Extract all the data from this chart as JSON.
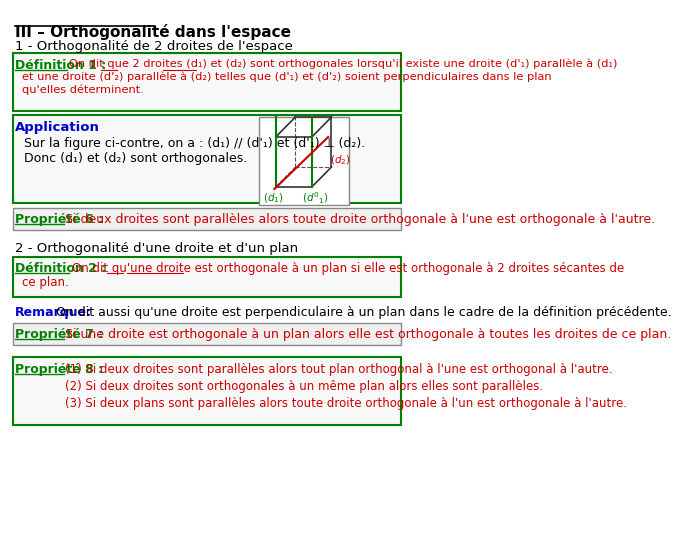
{
  "title": "III – Orthogonalité dans l'espace",
  "bg_color": "#ffffff",
  "section1_title": "1 - Orthogonalité de 2 droites de l'espace",
  "def1_label": "Définition 1 :",
  "def1_text_red": "On dit que 2 droites (d₁) et (d₂) sont orthogonales lorsqu'il existe une droite (d'₁) parallèle à (d₁)\net une droite (d'₂) parallèle à (d₂) telles que (d'₁) et (d'₂) soient perpendiculaires dans le plan\nqu'elles déterminent.",
  "app_label": "Application",
  "app_line1": "Sur la figure ci-contre, on a : (d₁) // (d'₁) et (d'₁) ⊥ (d₂).",
  "app_line2": "Donc (d₁) et (d₂) sont orthogonales.",
  "prop6_label": "Propriété 6 :",
  "prop6_text": "Si deux droites sont parallèles alors toute droite orthogonale à l'une est orthogonale à l'autre.",
  "section2_title": "2 - Orthogonalité d'une droite et d'un plan",
  "def2_label": "Définition 2 :",
  "def2_text": "On dit qu'une droite est orthogonale à un plan si elle est orthogonale à 2 droites sécantes de\nce plan.",
  "remarque_label": "Remarque:",
  "remarque_text": "On dit aussi qu'une droite est perpendiculaire à un plan dans le cadre de la définition précédente.",
  "prop7_label": "Propriété 7 :",
  "prop7_text": "Si une droite est orthogonale à un plan alors elle est orthogonale à toutes les droites de ce plan.",
  "prop8_label": "Propriété 8 :",
  "prop8_1": "(1) Si deux droites sont parallèles alors tout plan orthogonal à l'une est orthogonal à l'autre.",
  "prop8_2": "(2) Si deux droites sont orthogonales à un même plan alors elles sont parallèles.",
  "prop8_3": "(3) Si deux plans sont parallèles alors toute droite orthogonale à l'un est orthogonale à l'autre.",
  "color_green": "#008000",
  "color_red": "#cc0000",
  "color_blue": "#0000cc",
  "color_black": "#000000",
  "color_gray_bg": "#f0f0f0",
  "color_light_gray": "#e8e8e8",
  "border_green": "#00aa00"
}
